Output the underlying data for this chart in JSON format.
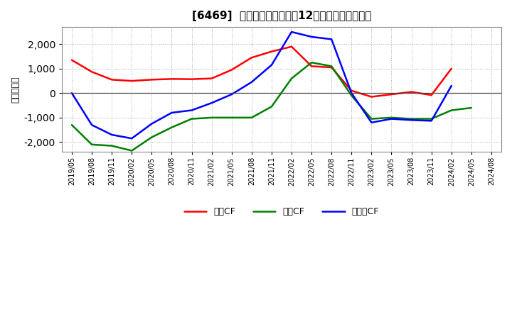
{
  "title": "[6469]  キャッシュフローの12か月移動合計の推移",
  "ylabel": "（百万円）",
  "background_color": "#ffffff",
  "plot_bg_color": "#ffffff",
  "grid_color": "#aaaaaa",
  "ylim": [
    -2400,
    2700
  ],
  "yticks": [
    -2000,
    -1000,
    0,
    1000,
    2000
  ],
  "legend": [
    "営業CF",
    "投資CF",
    "フリーCF"
  ],
  "line_colors": [
    "#ff0000",
    "#008000",
    "#0000ff"
  ],
  "dates": [
    "2019-05",
    "2019-08",
    "2019-11",
    "2020-02",
    "2020-05",
    "2020-08",
    "2020-11",
    "2021-02",
    "2021-05",
    "2021-08",
    "2021-11",
    "2022-02",
    "2022-05",
    "2022-08",
    "2022-11",
    "2023-02",
    "2023-05",
    "2023-08",
    "2023-11",
    "2024-02",
    "2024-05",
    "2024-08"
  ],
  "operating_cf": [
    1350,
    870,
    550,
    500,
    550,
    580,
    570,
    600,
    950,
    1450,
    1700,
    1900,
    1100,
    1050,
    100,
    -150,
    -50,
    50,
    -80,
    1000,
    null,
    null
  ],
  "investing_cf": [
    -1300,
    -2100,
    -2150,
    -2350,
    -1800,
    -1400,
    -1050,
    -1000,
    -1000,
    -1000,
    -550,
    600,
    1250,
    1100,
    -100,
    -1050,
    -1000,
    -1050,
    -1050,
    -700,
    -600,
    null
  ],
  "free_cf": [
    0,
    -1300,
    -1700,
    -1850,
    -1250,
    -800,
    -700,
    -400,
    -50,
    450,
    1150,
    2500,
    2300,
    2200,
    0,
    -1200,
    -1050,
    -1100,
    -1130,
    300,
    null,
    null
  ],
  "xtick_labels": [
    "2019/05",
    "2019/08",
    "2019/11",
    "2020/02",
    "2020/05",
    "2020/08",
    "2020/11",
    "2021/02",
    "2021/05",
    "2021/08",
    "2021/11",
    "2022/02",
    "2022/05",
    "2022/08",
    "2022/11",
    "2023/02",
    "2023/05",
    "2023/08",
    "2023/11",
    "2024/02",
    "2024/05",
    "2024/08"
  ]
}
